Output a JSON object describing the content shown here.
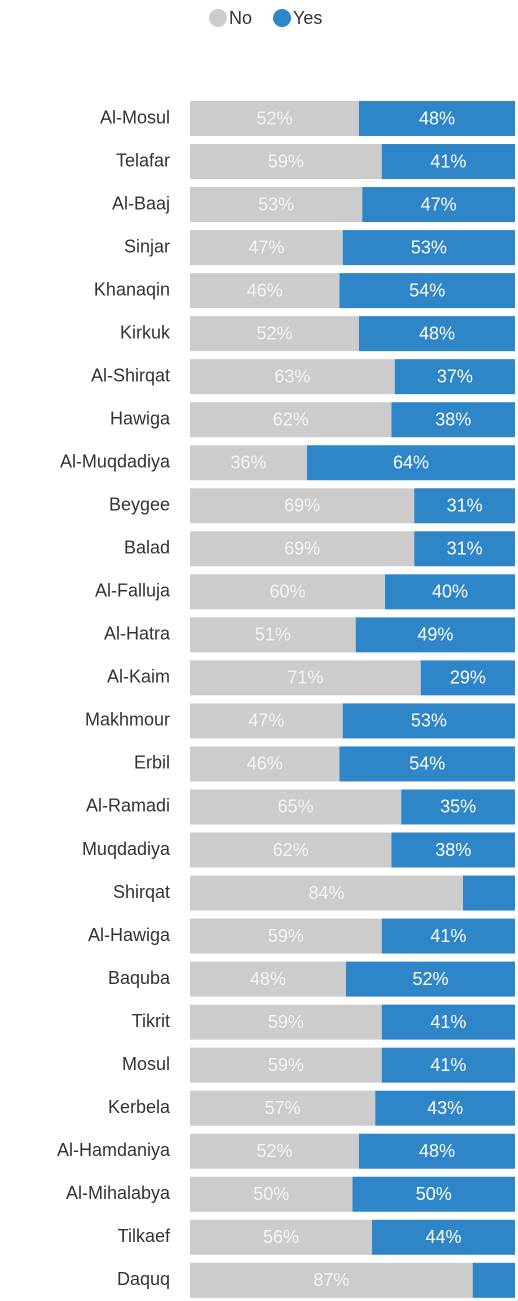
{
  "chart_data": {
    "type": "stacked-bar-horizontal",
    "categories": [
      "Al-Mosul",
      "Telafar",
      "Al-Baaj",
      "Sinjar",
      "Khanaqin",
      "Kirkuk",
      "Al-Shirqat",
      "Hawiga",
      "Al-Muqdadiya",
      "Beygee",
      "Balad",
      "Al-Falluja",
      "Al-Hatra",
      "Al-Kaim",
      "Makhmour",
      "Erbil",
      "Al-Ramadi",
      "Muqdadiya",
      "Shirqat",
      "Al-Hawiga",
      "Baquba",
      "Tikrit",
      "Mosul",
      "Kerbela",
      "Al-Hamdaniya",
      "Al-Mihalabya",
      "Tilkaef",
      "Daquq"
    ],
    "series": [
      {
        "name": "No",
        "color": "#cccccc",
        "values": [
          52,
          59,
          53,
          47,
          46,
          52,
          63,
          62,
          36,
          69,
          69,
          60,
          51,
          71,
          47,
          46,
          65,
          62,
          84,
          59,
          48,
          59,
          59,
          57,
          52,
          50,
          56,
          87
        ],
        "value_labels": [
          "52%",
          "59%",
          "53%",
          "47%",
          "46%",
          "52%",
          "63%",
          "62%",
          "36%",
          "69%",
          "69%",
          "60%",
          "51%",
          "71%",
          "47%",
          "46%",
          "65%",
          "62%",
          "84%",
          "59%",
          "48%",
          "59%",
          "59%",
          "57%",
          "52%",
          "50%",
          "56%",
          "87%"
        ]
      },
      {
        "name": "Yes",
        "color": "#2e86c8",
        "values": [
          48,
          41,
          47,
          53,
          54,
          48,
          37,
          38,
          64,
          31,
          31,
          40,
          49,
          29,
          53,
          54,
          35,
          38,
          16,
          41,
          52,
          41,
          41,
          43,
          48,
          50,
          44,
          13
        ],
        "value_labels": [
          "48%",
          "41%",
          "47%",
          "53%",
          "54%",
          "48%",
          "37%",
          "38%",
          "64%",
          "31%",
          "31%",
          "40%",
          "49%",
          "29%",
          "53%",
          "54%",
          "35%",
          "38%",
          null,
          "41%",
          "52%",
          "41%",
          "41%",
          "43%",
          "48%",
          "50%",
          "44%",
          null
        ]
      }
    ],
    "xlim": [
      0,
      100
    ]
  }
}
